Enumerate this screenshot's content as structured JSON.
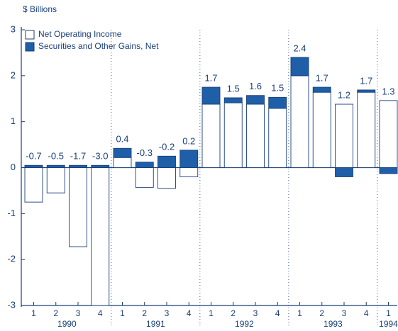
{
  "chart_data": {
    "type": "stacked_bar",
    "y_label": "$ Billions",
    "categories": [
      "1",
      "2",
      "3",
      "4",
      "1",
      "2",
      "3",
      "4",
      "1",
      "2",
      "3",
      "4",
      "1",
      "2",
      "3",
      "4",
      "1"
    ],
    "years": [
      "1990",
      "1990",
      "1990",
      "1990",
      "1991",
      "1991",
      "1991",
      "1991",
      "1992",
      "1992",
      "1992",
      "1992",
      "1993",
      "1993",
      "1993",
      "1993",
      "1994"
    ],
    "series": [
      {
        "name": "Net Operating Income",
        "color": "#ffffff",
        "values": [
          -0.75,
          -0.55,
          -1.72,
          -3.0,
          0.22,
          -0.43,
          -0.45,
          -0.2,
          1.38,
          1.41,
          1.38,
          1.29,
          2.0,
          1.64,
          1.38,
          1.64,
          1.46
        ]
      },
      {
        "name": "Securities and Other Gains, Net",
        "color": "#1f5fa8",
        "values": [
          0.05,
          0.05,
          0.05,
          0.05,
          0.2,
          0.12,
          0.25,
          0.38,
          0.37,
          0.11,
          0.19,
          0.24,
          0.4,
          0.11,
          -0.2,
          0.05,
          -0.13
        ]
      }
    ],
    "total_labels": [
      "-0.7",
      "-0.5",
      "-1.7",
      "-3.0",
      "0.4",
      "-0.3",
      "-0.2",
      "0.2",
      "1.7",
      "1.5",
      "1.6",
      "1.5",
      "2.4",
      "1.7",
      "1.2",
      "1.7",
      "1.3"
    ],
    "ylim": [
      -3,
      3
    ],
    "yticks": [
      -3,
      -2,
      -1,
      0,
      1,
      2,
      3
    ],
    "legend": "top-left"
  }
}
